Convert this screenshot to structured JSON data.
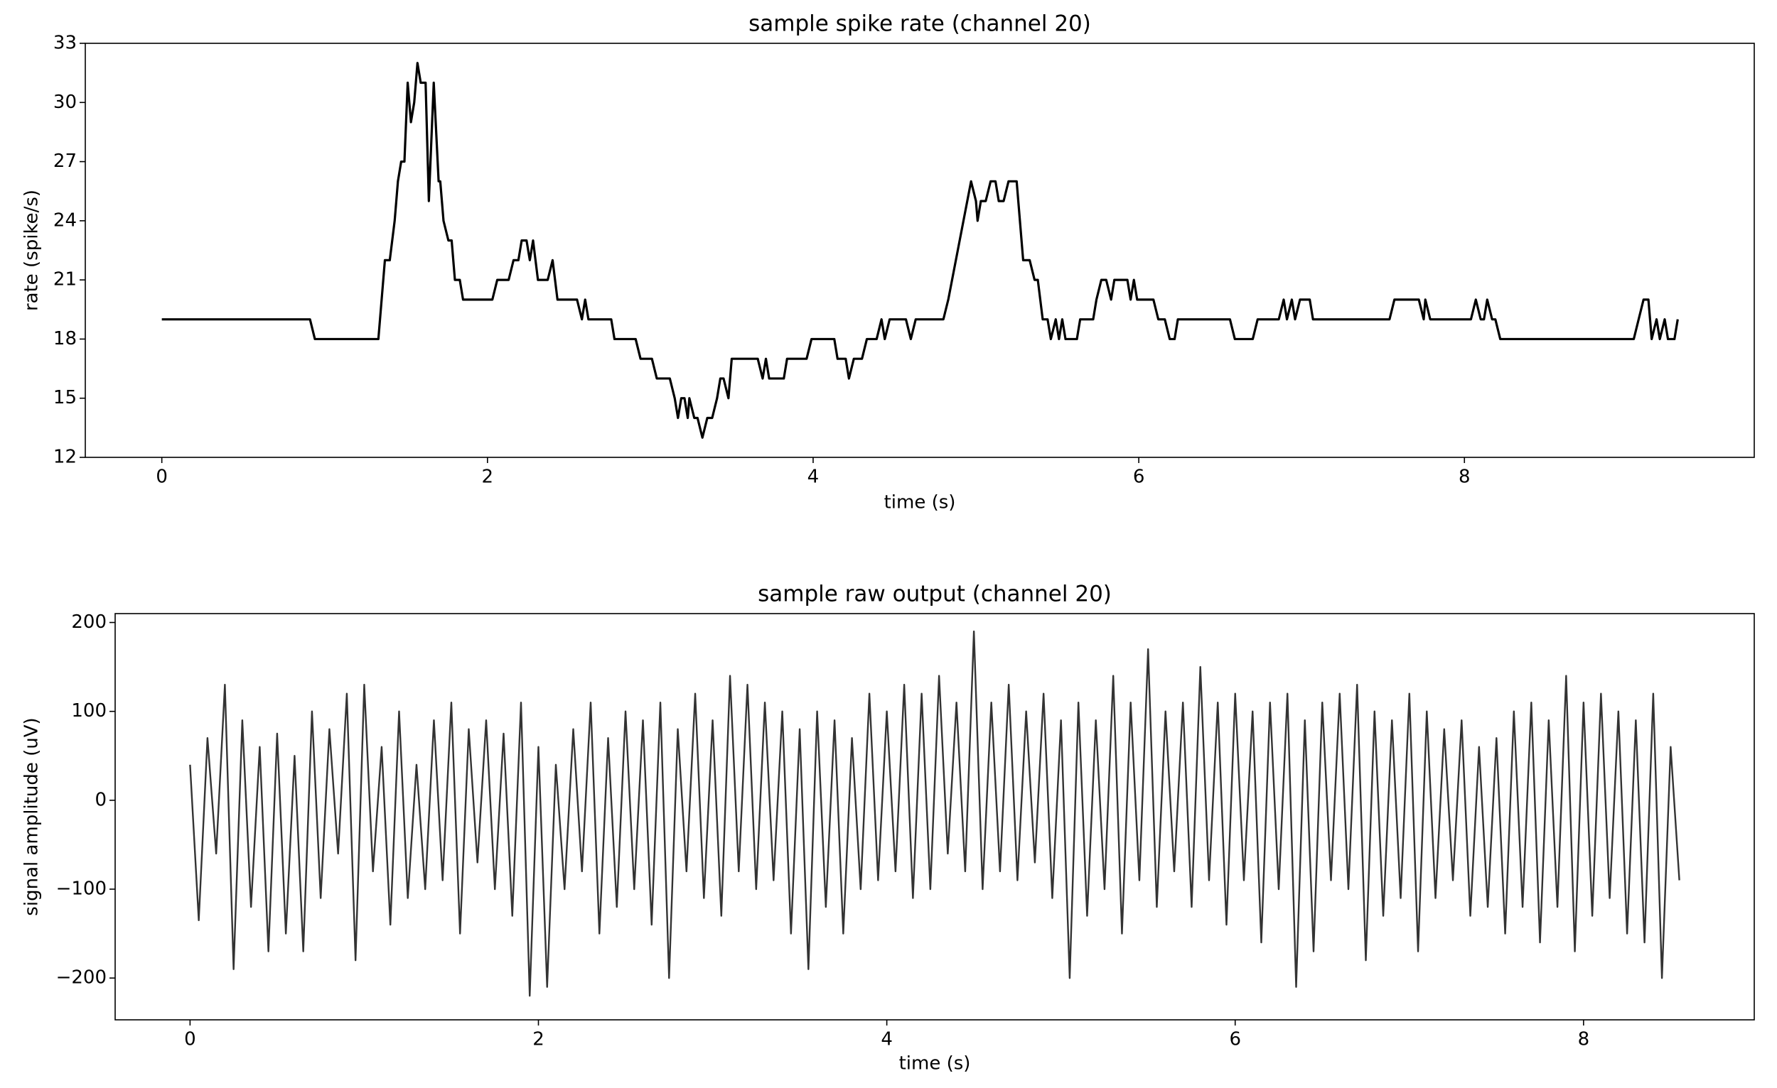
{
  "chart_data": [
    {
      "type": "line",
      "title": "sample spike rate (channel 20)",
      "x_label": "time (s)",
      "y_label": "rate (spike/s)",
      "color": "#000000",
      "xlim": [
        -0.47,
        9.78
      ],
      "ylim": [
        12,
        33
      ],
      "xticks": [
        0,
        2,
        4,
        6,
        8
      ],
      "yticks": [
        12,
        15,
        18,
        21,
        24,
        27,
        30,
        33
      ],
      "x": [
        0,
        0.91,
        0.94,
        1.33,
        1.37,
        1.4,
        1.43,
        1.45,
        1.47,
        1.49,
        1.51,
        1.53,
        1.55,
        1.57,
        1.59,
        1.62,
        1.64,
        1.67,
        1.7,
        1.71,
        1.73,
        1.76,
        1.78,
        1.8,
        1.83,
        1.85,
        2.03,
        2.06,
        2.13,
        2.16,
        2.19,
        2.21,
        2.24,
        2.26,
        2.28,
        2.31,
        2.37,
        2.4,
        2.43,
        2.55,
        2.58,
        2.6,
        2.62,
        2.76,
        2.78,
        2.91,
        2.94,
        3.01,
        3.04,
        3.12,
        3.15,
        3.17,
        3.19,
        3.21,
        3.23,
        3.24,
        3.27,
        3.29,
        3.32,
        3.35,
        3.38,
        3.41,
        3.43,
        3.45,
        3.48,
        3.5,
        3.66,
        3.69,
        3.71,
        3.73,
        3.82,
        3.84,
        3.96,
        3.99,
        4.13,
        4.15,
        4.2,
        4.22,
        4.25,
        4.3,
        4.33,
        4.39,
        4.42,
        4.44,
        4.47,
        4.57,
        4.6,
        4.63,
        4.8,
        4.83,
        4.97,
        5.0,
        5.01,
        5.03,
        5.06,
        5.09,
        5.12,
        5.14,
        5.17,
        5.2,
        5.25,
        5.29,
        5.33,
        5.36,
        5.38,
        5.41,
        5.44,
        5.46,
        5.49,
        5.51,
        5.53,
        5.55,
        5.62,
        5.64,
        5.72,
        5.74,
        5.77,
        5.8,
        5.83,
        5.85,
        5.93,
        5.95,
        5.97,
        5.99,
        6.09,
        6.12,
        6.16,
        6.19,
        6.22,
        6.24,
        6.56,
        6.59,
        6.7,
        6.73,
        6.86,
        6.89,
        6.91,
        6.94,
        6.96,
        6.99,
        7.05,
        7.07,
        7.54,
        7.57,
        7.72,
        7.75,
        7.76,
        7.79,
        8.04,
        8.07,
        8.1,
        8.12,
        8.14,
        8.17,
        8.19,
        8.22,
        9.04,
        9.07,
        9.1,
        9.13,
        9.15,
        9.18,
        9.2,
        9.23,
        9.25,
        9.29,
        9.31
      ],
      "values": [
        19,
        19,
        18,
        18,
        22,
        22,
        24,
        26,
        27,
        27,
        31,
        29,
        30,
        32,
        31,
        31,
        25,
        31,
        26,
        26,
        24,
        23,
        23,
        21,
        21,
        20,
        20,
        21,
        21,
        22,
        22,
        23,
        23,
        22,
        23,
        21,
        21,
        22,
        20,
        20,
        19,
        20,
        19,
        19,
        18,
        18,
        17,
        17,
        16,
        16,
        15,
        14,
        15,
        15,
        14,
        15,
        14,
        14,
        13,
        14,
        14,
        15,
        16,
        16,
        15,
        17,
        17,
        16,
        17,
        16,
        16,
        17,
        17,
        18,
        18,
        17,
        17,
        16,
        17,
        17,
        18,
        18,
        19,
        18,
        19,
        19,
        18,
        19,
        19,
        20,
        26,
        25,
        24,
        25,
        25,
        26,
        26,
        25,
        25,
        26,
        26,
        22,
        22,
        21,
        21,
        19,
        19,
        18,
        19,
        18,
        19,
        18,
        18,
        19,
        19,
        20,
        21,
        21,
        20,
        21,
        21,
        20,
        21,
        20,
        20,
        19,
        19,
        18,
        18,
        19,
        19,
        18,
        18,
        19,
        19,
        20,
        19,
        20,
        19,
        20,
        20,
        19,
        19,
        20,
        20,
        19,
        20,
        19,
        19,
        20,
        19,
        19,
        20,
        19,
        19,
        18,
        18,
        19,
        20,
        20,
        18,
        19,
        18,
        19,
        18,
        18,
        19
      ]
    },
    {
      "type": "line",
      "title": "sample raw output (channel 20)",
      "x_label": "time (s)",
      "y_label": "signal amplitude (uV)",
      "color": "#333333",
      "xlim": [
        -0.43,
        8.98
      ],
      "ylim": [
        -247,
        210
      ],
      "xticks": [
        0,
        2,
        4,
        6,
        8
      ],
      "yticks": [
        {
          "value": -200,
          "label": "−200"
        },
        {
          "value": -100,
          "label": "−100"
        },
        0,
        100,
        200
      ],
      "x": [
        0,
        0.05,
        0.1,
        0.15,
        0.2,
        0.25,
        0.3,
        0.35,
        0.4,
        0.45,
        0.5,
        0.55,
        0.6,
        0.65,
        0.7,
        0.75,
        0.8,
        0.85,
        0.9,
        0.95,
        1,
        1.05,
        1.1,
        1.15,
        1.2,
        1.25,
        1.3,
        1.35,
        1.4,
        1.45,
        1.5,
        1.55,
        1.6,
        1.65,
        1.7,
        1.75,
        1.8,
        1.85,
        1.9,
        1.95,
        2,
        2.05,
        2.1,
        2.15,
        2.2,
        2.25,
        2.3,
        2.35,
        2.4,
        2.45,
        2.5,
        2.55,
        2.6,
        2.65,
        2.7,
        2.75,
        2.8,
        2.85,
        2.9,
        2.95,
        3,
        3.05,
        3.1,
        3.15,
        3.2,
        3.25,
        3.3,
        3.35,
        3.4,
        3.45,
        3.5,
        3.55,
        3.6,
        3.65,
        3.7,
        3.75,
        3.8,
        3.85,
        3.9,
        3.95,
        4,
        4.05,
        4.1,
        4.15,
        4.2,
        4.25,
        4.3,
        4.35,
        4.4,
        4.45,
        4.5,
        4.55,
        4.6,
        4.65,
        4.7,
        4.75,
        4.8,
        4.85,
        4.9,
        4.95,
        5,
        5.05,
        5.1,
        5.15,
        5.2,
        5.25,
        5.3,
        5.35,
        5.4,
        5.45,
        5.5,
        5.55,
        5.6,
        5.65,
        5.7,
        5.75,
        5.8,
        5.85,
        5.9,
        5.95,
        6,
        6.05,
        6.1,
        6.15,
        6.2,
        6.25,
        6.3,
        6.35,
        6.4,
        6.45,
        6.5,
        6.55,
        6.6,
        6.65,
        6.7,
        6.75,
        6.8,
        6.85,
        6.9,
        6.95,
        7,
        7.05,
        7.1,
        7.15,
        7.2,
        7.25,
        7.3,
        7.35,
        7.4,
        7.45,
        7.5,
        7.55,
        7.6,
        7.65,
        7.7,
        7.75,
        7.8,
        7.85,
        7.9,
        7.95,
        8,
        8.05,
        8.1,
        8.15,
        8.2,
        8.25,
        8.3,
        8.35,
        8.4,
        8.45,
        8.5,
        8.55
      ],
      "values": [
        40,
        -135,
        70,
        -60,
        130,
        -190,
        90,
        -120,
        60,
        -170,
        75,
        -150,
        50,
        -170,
        100,
        -110,
        80,
        -60,
        120,
        -180,
        130,
        -80,
        60,
        -140,
        100,
        -110,
        40,
        -100,
        90,
        -90,
        110,
        -150,
        80,
        -70,
        90,
        -100,
        75,
        -130,
        110,
        -220,
        60,
        -210,
        40,
        -100,
        80,
        -80,
        110,
        -150,
        70,
        -120,
        100,
        -100,
        90,
        -140,
        110,
        -200,
        80,
        -80,
        120,
        -110,
        90,
        -130,
        140,
        -80,
        130,
        -100,
        110,
        -90,
        100,
        -150,
        80,
        -190,
        100,
        -120,
        90,
        -150,
        70,
        -100,
        120,
        -90,
        100,
        -80,
        130,
        -110,
        120,
        -100,
        140,
        -60,
        110,
        -80,
        190,
        -100,
        110,
        -80,
        130,
        -90,
        100,
        -70,
        120,
        -110,
        90,
        -200,
        110,
        -130,
        90,
        -100,
        140,
        -150,
        110,
        -90,
        170,
        -120,
        100,
        -80,
        110,
        -120,
        150,
        -90,
        110,
        -140,
        120,
        -90,
        100,
        -160,
        110,
        -100,
        120,
        -210,
        90,
        -170,
        110,
        -90,
        120,
        -100,
        130,
        -180,
        100,
        -130,
        90,
        -110,
        120,
        -170,
        100,
        -110,
        80,
        -90,
        90,
        -130,
        60,
        -120,
        70,
        -150,
        100,
        -120,
        110,
        -160,
        90,
        -120,
        140,
        -170,
        110,
        -130,
        120,
        -110,
        100,
        -150,
        90,
        -160,
        120,
        -200,
        60,
        -90
      ]
    }
  ]
}
